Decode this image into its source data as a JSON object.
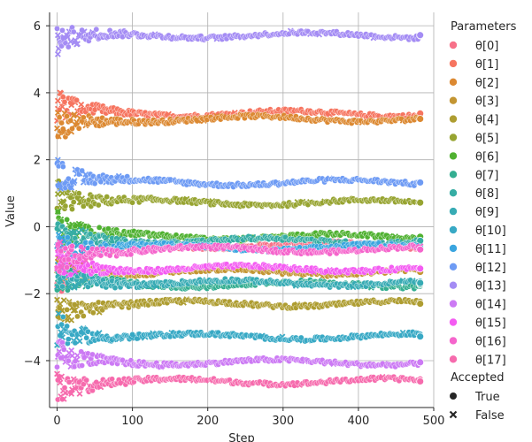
{
  "chart_data": {
    "type": "scatter",
    "title": "",
    "xlabel": "Step",
    "ylabel": "Value",
    "xlim": [
      -10,
      500
    ],
    "ylim": [
      -5.4,
      6.4
    ],
    "x_ticks": [
      0,
      100,
      200,
      300,
      400,
      500
    ],
    "y_ticks": [
      -4,
      -2,
      0,
      2,
      4,
      6
    ],
    "grid": true,
    "legend": {
      "placement": "right",
      "parameters_title": "Parameters",
      "accepted_title": "Accepted",
      "accepted_entries": [
        {
          "label": "True",
          "marker": "circle"
        },
        {
          "label": "False",
          "marker": "x"
        }
      ]
    },
    "x_max": 482,
    "series": [
      {
        "name": "θ[0]",
        "color": "#f77189",
        "initial": -1.9,
        "final": -0.55
      },
      {
        "name": "θ[1]",
        "color": "#f6745f",
        "initial": 3.6,
        "final": 3.38
      },
      {
        "name": "θ[2]",
        "color": "#dc8932",
        "initial": 2.9,
        "final": 3.22
      },
      {
        "name": "θ[3]",
        "color": "#c39532",
        "initial": -1.2,
        "final": -1.35
      },
      {
        "name": "θ[4]",
        "color": "#ae9d31",
        "initial": -2.5,
        "final": -2.3
      },
      {
        "name": "θ[5]",
        "color": "#97a431",
        "initial": 1.0,
        "final": 0.72
      },
      {
        "name": "θ[6]",
        "color": "#50b131",
        "initial": 0.0,
        "final": -0.3
      },
      {
        "name": "θ[7]",
        "color": "#34ae91",
        "initial": -1.6,
        "final": -1.72
      },
      {
        "name": "θ[8]",
        "color": "#36ada4",
        "initial": -0.3,
        "final": -0.42
      },
      {
        "name": "θ[9]",
        "color": "#37abb4",
        "initial": -1.4,
        "final": -1.68
      },
      {
        "name": "θ[10]",
        "color": "#38a9c5",
        "initial": -3.0,
        "final": -3.28
      },
      {
        "name": "θ[11]",
        "color": "#3aa5df",
        "initial": -0.6,
        "final": -0.62
      },
      {
        "name": "θ[12]",
        "color": "#6e9bf4",
        "initial": 1.6,
        "final": 1.32
      },
      {
        "name": "θ[13]",
        "color": "#a48cf4",
        "initial": 5.5,
        "final": 5.72
      },
      {
        "name": "θ[14]",
        "color": "#cc7af4",
        "initial": -3.9,
        "final": -4.05
      },
      {
        "name": "θ[15]",
        "color": "#f45cf2",
        "initial": -1.1,
        "final": -1.25
      },
      {
        "name": "θ[16]",
        "color": "#f565cc",
        "initial": -0.9,
        "final": -0.68
      },
      {
        "name": "θ[17]",
        "color": "#f66bad",
        "initial": -4.8,
        "final": -4.62
      }
    ]
  }
}
